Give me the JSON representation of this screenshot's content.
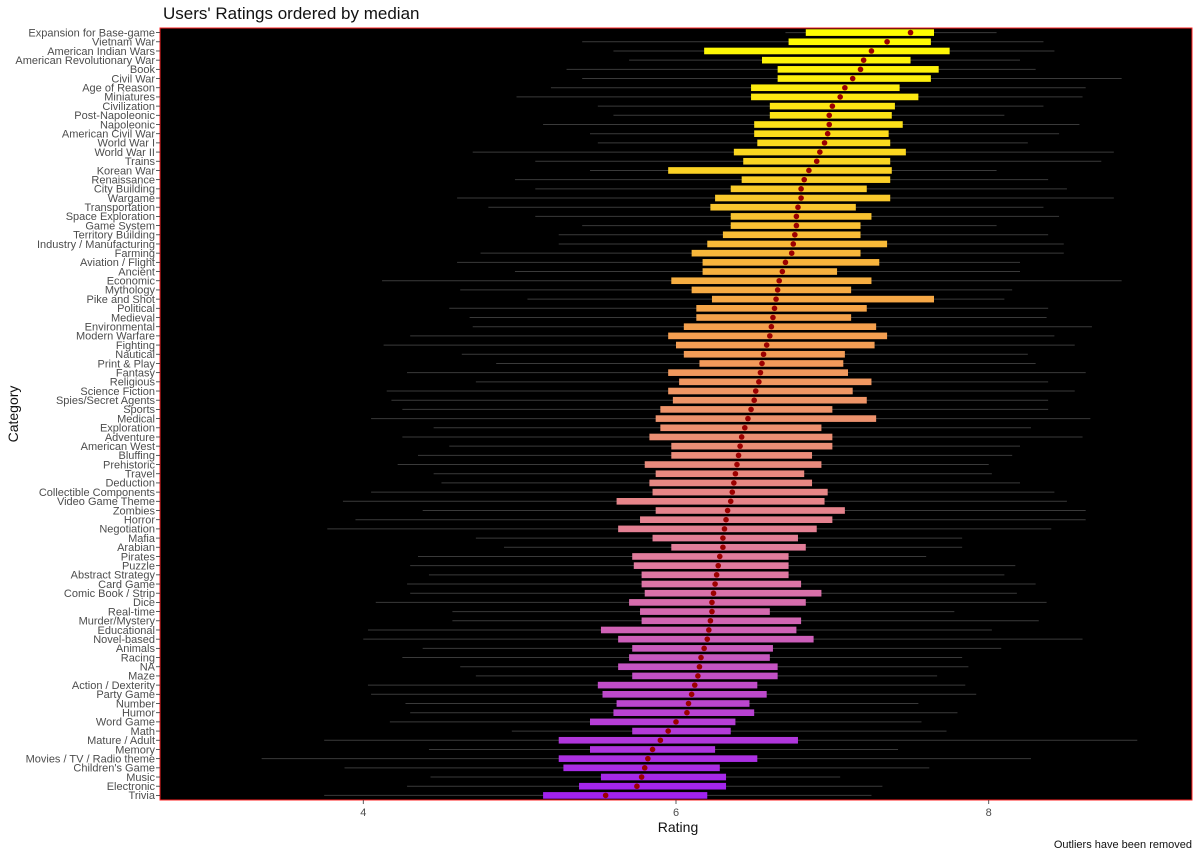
{
  "chart_data": {
    "type": "boxplot",
    "title": "Users' Ratings ordered by median",
    "xlabel": "Rating",
    "ylabel": "Category",
    "caption": "Outliers have been removed",
    "xlim": [
      2.7,
      9.3
    ],
    "xticks": [
      4,
      6,
      8
    ],
    "colors": {
      "panel_bg": "#000000",
      "panel_border": "#ff2222",
      "median_marker": "#9b0000",
      "whisker": "#3a3a3a",
      "gradient": [
        "#ffff00",
        "#f5a14c",
        "#e07aa0",
        "#a020f0"
      ]
    },
    "categories": [
      {
        "name": "Expansion for Base-game",
        "lw": 6.7,
        "q1": 6.83,
        "med": 7.5,
        "q3": 7.65,
        "uw": 8.05
      },
      {
        "name": "Vietnam War",
        "lw": 5.4,
        "q1": 6.72,
        "med": 7.35,
        "q3": 7.63,
        "uw": 8.35
      },
      {
        "name": "American Indian Wars",
        "lw": 5.6,
        "q1": 6.18,
        "med": 7.25,
        "q3": 7.75,
        "uw": 8.42
      },
      {
        "name": "American Revolutionary War",
        "lw": 5.7,
        "q1": 6.55,
        "med": 7.2,
        "q3": 7.5,
        "uw": 8.2
      },
      {
        "name": "Book",
        "lw": 5.3,
        "q1": 6.65,
        "med": 7.18,
        "q3": 7.68,
        "uw": 8.3
      },
      {
        "name": "Civil War",
        "lw": 5.4,
        "q1": 6.65,
        "med": 7.13,
        "q3": 7.63,
        "uw": 8.85
      },
      {
        "name": "Age of Reason",
        "lw": 5.2,
        "q1": 6.48,
        "med": 7.08,
        "q3": 7.43,
        "uw": 8.62
      },
      {
        "name": "Miniatures",
        "lw": 4.98,
        "q1": 6.48,
        "med": 7.05,
        "q3": 7.55,
        "uw": 8.6
      },
      {
        "name": "Civilization",
        "lw": 5.5,
        "q1": 6.6,
        "med": 7.0,
        "q3": 7.4,
        "uw": 8.35
      },
      {
        "name": "Post-Napoleonic",
        "lw": 5.6,
        "q1": 6.6,
        "med": 6.98,
        "q3": 7.38,
        "uw": 8.1
      },
      {
        "name": "Napoleonic",
        "lw": 5.15,
        "q1": 6.5,
        "med": 6.98,
        "q3": 7.45,
        "uw": 8.58
      },
      {
        "name": "American Civil War",
        "lw": 5.45,
        "q1": 6.5,
        "med": 6.97,
        "q3": 7.36,
        "uw": 8.45
      },
      {
        "name": "World War I",
        "lw": 5.5,
        "q1": 6.52,
        "med": 6.95,
        "q3": 7.37,
        "uw": 8.25
      },
      {
        "name": "World War II",
        "lw": 4.7,
        "q1": 6.37,
        "med": 6.92,
        "q3": 7.47,
        "uw": 8.8
      },
      {
        "name": "Trains",
        "lw": 5.1,
        "q1": 6.43,
        "med": 6.9,
        "q3": 7.37,
        "uw": 8.72
      },
      {
        "name": "Korean War",
        "lw": 5.45,
        "q1": 5.95,
        "med": 6.85,
        "q3": 7.38,
        "uw": 8.05
      },
      {
        "name": "Renaissance",
        "lw": 4.97,
        "q1": 6.42,
        "med": 6.82,
        "q3": 7.37,
        "uw": 8.38
      },
      {
        "name": "City Building",
        "lw": 5.1,
        "q1": 6.35,
        "med": 6.8,
        "q3": 7.22,
        "uw": 8.5
      },
      {
        "name": "Wargame",
        "lw": 4.6,
        "q1": 6.25,
        "med": 6.8,
        "q3": 7.37,
        "uw": 8.8
      },
      {
        "name": "Transportation",
        "lw": 4.8,
        "q1": 6.22,
        "med": 6.78,
        "q3": 7.15,
        "uw": 8.35
      },
      {
        "name": "Space Exploration",
        "lw": 5.1,
        "q1": 6.35,
        "med": 6.77,
        "q3": 7.25,
        "uw": 8.45
      },
      {
        "name": "Game System",
        "lw": 5.4,
        "q1": 6.35,
        "med": 6.77,
        "q3": 7.18,
        "uw": 8.05
      },
      {
        "name": "Territory Building",
        "lw": 5.25,
        "q1": 6.3,
        "med": 6.76,
        "q3": 7.18,
        "uw": 8.38
      },
      {
        "name": "Industry / Manufacturing",
        "lw": 5.25,
        "q1": 6.2,
        "med": 6.75,
        "q3": 7.35,
        "uw": 8.48
      },
      {
        "name": "Farming",
        "lw": 4.75,
        "q1": 6.1,
        "med": 6.74,
        "q3": 7.18,
        "uw": 8.48
      },
      {
        "name": "Aviation / Flight",
        "lw": 4.6,
        "q1": 6.17,
        "med": 6.7,
        "q3": 7.3,
        "uw": 8.2
      },
      {
        "name": "Ancient",
        "lw": 4.97,
        "q1": 6.17,
        "med": 6.68,
        "q3": 7.03,
        "uw": 8.2
      },
      {
        "name": "Economic",
        "lw": 4.12,
        "q1": 5.97,
        "med": 6.66,
        "q3": 7.25,
        "uw": 8.85
      },
      {
        "name": "Mythology",
        "lw": 4.62,
        "q1": 6.1,
        "med": 6.65,
        "q3": 7.12,
        "uw": 8.15
      },
      {
        "name": "Pike and Shot",
        "lw": 5.05,
        "q1": 6.23,
        "med": 6.64,
        "q3": 7.65,
        "uw": 8.1
      },
      {
        "name": "Political",
        "lw": 4.55,
        "q1": 6.13,
        "med": 6.63,
        "q3": 7.22,
        "uw": 8.38
      },
      {
        "name": "Medieval",
        "lw": 4.68,
        "q1": 6.13,
        "med": 6.62,
        "q3": 7.12,
        "uw": 8.37
      },
      {
        "name": "Environmental",
        "lw": 4.7,
        "q1": 6.05,
        "med": 6.61,
        "q3": 7.28,
        "uw": 8.66
      },
      {
        "name": "Modern Warfare",
        "lw": 4.3,
        "q1": 5.95,
        "med": 6.6,
        "q3": 7.35,
        "uw": 8.42
      },
      {
        "name": "Fighting",
        "lw": 4.13,
        "q1": 6.0,
        "med": 6.58,
        "q3": 7.27,
        "uw": 8.55
      },
      {
        "name": "Nautical",
        "lw": 4.63,
        "q1": 6.05,
        "med": 6.56,
        "q3": 7.08,
        "uw": 8.25
      },
      {
        "name": "Print & Play",
        "lw": 4.85,
        "q1": 6.15,
        "med": 6.55,
        "q3": 7.07,
        "uw": 8.3
      },
      {
        "name": "Fantasy",
        "lw": 4.28,
        "q1": 5.95,
        "med": 6.54,
        "q3": 7.1,
        "uw": 8.62
      },
      {
        "name": "Religious",
        "lw": 4.72,
        "q1": 6.02,
        "med": 6.53,
        "q3": 7.25,
        "uw": 8.38
      },
      {
        "name": "Science Fiction",
        "lw": 4.15,
        "q1": 5.95,
        "med": 6.51,
        "q3": 7.13,
        "uw": 8.55
      },
      {
        "name": "Spies/Secret Agents",
        "lw": 4.18,
        "q1": 5.98,
        "med": 6.5,
        "q3": 7.22,
        "uw": 8.38
      },
      {
        "name": "Sports",
        "lw": 4.25,
        "q1": 5.9,
        "med": 6.48,
        "q3": 7.0,
        "uw": 8.38
      },
      {
        "name": "Medical",
        "lw": 4.05,
        "q1": 5.87,
        "med": 6.46,
        "q3": 7.28,
        "uw": 8.65
      },
      {
        "name": "Exploration",
        "lw": 4.45,
        "q1": 5.9,
        "med": 6.44,
        "q3": 6.93,
        "uw": 8.27
      },
      {
        "name": "Adventure",
        "lw": 4.25,
        "q1": 5.83,
        "med": 6.42,
        "q3": 7.0,
        "uw": 8.6
      },
      {
        "name": "American West",
        "lw": 4.55,
        "q1": 5.97,
        "med": 6.41,
        "q3": 7.0,
        "uw": 8.2
      },
      {
        "name": "Bluffing",
        "lw": 4.35,
        "q1": 5.97,
        "med": 6.4,
        "q3": 6.87,
        "uw": 8.15
      },
      {
        "name": "Prehistoric",
        "lw": 4.22,
        "q1": 5.8,
        "med": 6.39,
        "q3": 6.93,
        "uw": 8.0
      },
      {
        "name": "Travel",
        "lw": 4.45,
        "q1": 5.87,
        "med": 6.38,
        "q3": 6.82,
        "uw": 8.02
      },
      {
        "name": "Deduction",
        "lw": 4.5,
        "q1": 5.83,
        "med": 6.37,
        "q3": 6.87,
        "uw": 8.2
      },
      {
        "name": "Collectible Components",
        "lw": 4.05,
        "q1": 5.85,
        "med": 6.36,
        "q3": 6.97,
        "uw": 8.42
      },
      {
        "name": "Video Game Theme",
        "lw": 3.87,
        "q1": 5.62,
        "med": 6.35,
        "q3": 6.95,
        "uw": 8.5
      },
      {
        "name": "Zombies",
        "lw": 4.38,
        "q1": 5.87,
        "med": 6.33,
        "q3": 7.08,
        "uw": 8.62
      },
      {
        "name": "Horror",
        "lw": 3.95,
        "q1": 5.77,
        "med": 6.32,
        "q3": 7.0,
        "uw": 8.62
      },
      {
        "name": "Negotiation",
        "lw": 3.77,
        "q1": 5.63,
        "med": 6.31,
        "q3": 6.9,
        "uw": 8.4
      },
      {
        "name": "Mafia",
        "lw": 4.72,
        "q1": 5.85,
        "med": 6.3,
        "q3": 6.78,
        "uw": 7.83
      },
      {
        "name": "Arabian",
        "lw": 4.9,
        "q1": 5.97,
        "med": 6.3,
        "q3": 6.83,
        "uw": 7.83
      },
      {
        "name": "Pirates",
        "lw": 4.35,
        "q1": 5.72,
        "med": 6.28,
        "q3": 6.72,
        "uw": 7.6
      },
      {
        "name": "Puzzle",
        "lw": 4.3,
        "q1": 5.73,
        "med": 6.27,
        "q3": 6.72,
        "uw": 8.17
      },
      {
        "name": "Abstract Strategy",
        "lw": 4.42,
        "q1": 5.78,
        "med": 6.26,
        "q3": 6.72,
        "uw": 8.1
      },
      {
        "name": "Card Game",
        "lw": 4.28,
        "q1": 5.78,
        "med": 6.25,
        "q3": 6.8,
        "uw": 8.3
      },
      {
        "name": "Comic Book / Strip",
        "lw": 4.3,
        "q1": 5.8,
        "med": 6.24,
        "q3": 6.93,
        "uw": 8.18
      },
      {
        "name": "Dice",
        "lw": 4.08,
        "q1": 5.7,
        "med": 6.23,
        "q3": 6.83,
        "uw": 8.37
      },
      {
        "name": "Real-time",
        "lw": 4.57,
        "q1": 5.77,
        "med": 6.23,
        "q3": 6.6,
        "uw": 7.78
      },
      {
        "name": "Murder/Mystery",
        "lw": 4.57,
        "q1": 5.78,
        "med": 6.22,
        "q3": 6.8,
        "uw": 8.32
      },
      {
        "name": "Educational",
        "lw": 4.03,
        "q1": 5.52,
        "med": 6.21,
        "q3": 6.77,
        "uw": 8.02
      },
      {
        "name": "Novel-based",
        "lw": 4.0,
        "q1": 5.63,
        "med": 6.2,
        "q3": 6.88,
        "uw": 8.6
      },
      {
        "name": "Animals",
        "lw": 4.38,
        "q1": 5.72,
        "med": 6.18,
        "q3": 6.62,
        "uw": 8.08
      },
      {
        "name": "Racing",
        "lw": 4.25,
        "q1": 5.7,
        "med": 6.16,
        "q3": 6.6,
        "uw": 7.83
      },
      {
        "name": "NA",
        "lw": 4.62,
        "q1": 5.63,
        "med": 6.15,
        "q3": 6.65,
        "uw": 7.87
      },
      {
        "name": "Maze",
        "lw": 4.72,
        "q1": 5.72,
        "med": 6.14,
        "q3": 6.65,
        "uw": 7.67
      },
      {
        "name": "Action / Dexterity",
        "lw": 4.03,
        "q1": 5.5,
        "med": 6.12,
        "q3": 6.52,
        "uw": 7.85
      },
      {
        "name": "Party Game",
        "lw": 4.05,
        "q1": 5.53,
        "med": 6.1,
        "q3": 6.58,
        "uw": 7.92
      },
      {
        "name": "Number",
        "lw": 4.27,
        "q1": 5.62,
        "med": 6.08,
        "q3": 6.47,
        "uw": 7.55
      },
      {
        "name": "Humor",
        "lw": 4.3,
        "q1": 5.6,
        "med": 6.07,
        "q3": 6.5,
        "uw": 7.8
      },
      {
        "name": "Word Game",
        "lw": 4.17,
        "q1": 5.45,
        "med": 6.0,
        "q3": 6.38,
        "uw": 7.57
      },
      {
        "name": "Math",
        "lw": 4.95,
        "q1": 5.72,
        "med": 5.95,
        "q3": 6.35,
        "uw": 7.73
      },
      {
        "name": "Mature / Adult",
        "lw": 3.75,
        "q1": 5.25,
        "med": 5.9,
        "q3": 6.78,
        "uw": 8.95
      },
      {
        "name": "Memory",
        "lw": 4.42,
        "q1": 5.45,
        "med": 5.85,
        "q3": 6.25,
        "uw": 7.42
      },
      {
        "name": "Movies / TV / Radio theme",
        "lw": 3.35,
        "q1": 5.25,
        "med": 5.82,
        "q3": 6.52,
        "uw": 8.27
      },
      {
        "name": "Children's Game",
        "lw": 3.88,
        "q1": 5.28,
        "med": 5.8,
        "q3": 6.28,
        "uw": 7.62
      },
      {
        "name": "Music",
        "lw": 4.43,
        "q1": 5.52,
        "med": 5.78,
        "q3": 6.32,
        "uw": 7.05
      },
      {
        "name": "Electronic",
        "lw": 4.28,
        "q1": 5.38,
        "med": 5.75,
        "q3": 6.32,
        "uw": 7.32
      },
      {
        "name": "Trivia",
        "lw": 3.75,
        "q1": 5.15,
        "med": 5.55,
        "q3": 6.2,
        "uw": 7.25
      }
    ]
  }
}
